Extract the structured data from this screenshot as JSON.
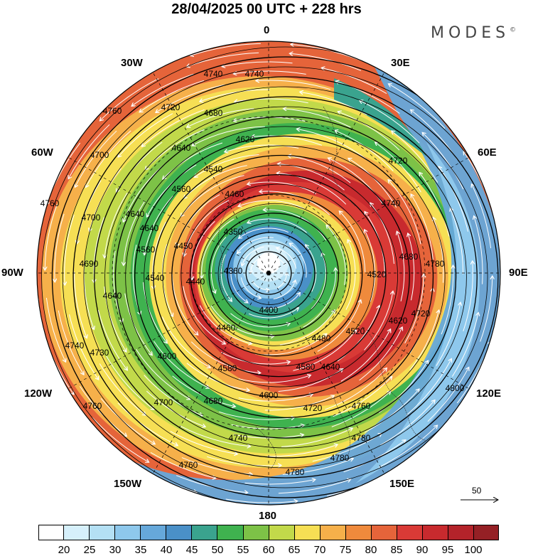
{
  "title": "28/04/2025  00 UTC  + 228 hrs",
  "brand": "MODES",
  "brand_mark": "©",
  "longitude_labels": [
    {
      "id": "0",
      "text": "0"
    },
    {
      "id": "30W",
      "text": "30W"
    },
    {
      "id": "30E",
      "text": "30E"
    },
    {
      "id": "60W",
      "text": "60W"
    },
    {
      "id": "60E",
      "text": "60E"
    },
    {
      "id": "90W",
      "text": "90W"
    },
    {
      "id": "90E",
      "text": "90E"
    },
    {
      "id": "120W",
      "text": "120W"
    },
    {
      "id": "120E",
      "text": "120E"
    },
    {
      "id": "150W",
      "text": "150W"
    },
    {
      "id": "150E",
      "text": "150E"
    },
    {
      "id": "180",
      "text": "180"
    }
  ],
  "contour_labels": [
    {
      "text": "4740"
    },
    {
      "text": "4740"
    },
    {
      "text": "4760"
    },
    {
      "text": "4720"
    },
    {
      "text": "4680"
    },
    {
      "text": "4620"
    },
    {
      "text": "4640"
    },
    {
      "text": "4720"
    },
    {
      "text": "4540"
    },
    {
      "text": "4760"
    },
    {
      "text": "4700"
    },
    {
      "text": "4640"
    },
    {
      "text": "4560"
    },
    {
      "text": "4460"
    },
    {
      "text": "4740"
    },
    {
      "text": "4640"
    },
    {
      "text": "4350"
    },
    {
      "text": "4560"
    },
    {
      "text": "4450"
    },
    {
      "text": "4700"
    },
    {
      "text": "4690"
    },
    {
      "text": "4360"
    },
    {
      "text": "4440"
    },
    {
      "text": "4520"
    },
    {
      "text": "4680"
    },
    {
      "text": "4780"
    },
    {
      "text": "4540"
    },
    {
      "text": "4640"
    },
    {
      "text": "4400"
    },
    {
      "text": "4620"
    },
    {
      "text": "4720"
    },
    {
      "text": "4460"
    },
    {
      "text": "4520"
    },
    {
      "text": "4480"
    },
    {
      "text": "4740"
    },
    {
      "text": "4730"
    },
    {
      "text": "4600"
    },
    {
      "text": "4580"
    },
    {
      "text": "4580"
    },
    {
      "text": "4640"
    },
    {
      "text": "4800"
    },
    {
      "text": "4700"
    },
    {
      "text": "4680"
    },
    {
      "text": "4600"
    },
    {
      "text": "4720"
    },
    {
      "text": "4760"
    },
    {
      "text": "4760"
    },
    {
      "text": "4740"
    },
    {
      "text": "4780"
    },
    {
      "text": "4760"
    },
    {
      "text": "4780"
    },
    {
      "text": "4780"
    }
  ],
  "colorbar": {
    "colors": [
      "#ffffff",
      "#d6f0fb",
      "#b4e0f4",
      "#8ec8ec",
      "#66a8da",
      "#4a90c8",
      "#3aa38e",
      "#3fb24f",
      "#7dc247",
      "#c2d94a",
      "#f6df54",
      "#f6b04a",
      "#ef8a3c",
      "#e5643a",
      "#d93a36",
      "#c82a2e",
      "#b4232a",
      "#952025"
    ],
    "labels": [
      "20",
      "25",
      "30",
      "35",
      "40",
      "45",
      "50",
      "55",
      "60",
      "65",
      "70",
      "75",
      "80",
      "85",
      "90",
      "95",
      "100"
    ]
  },
  "wind_reference": {
    "value": "50"
  }
}
